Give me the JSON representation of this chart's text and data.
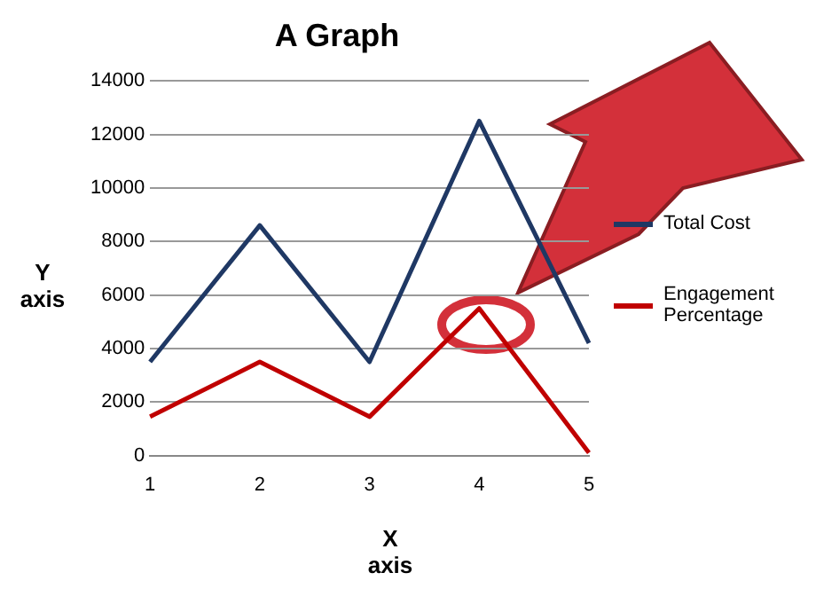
{
  "chart_data": {
    "type": "line",
    "title": "A Graph",
    "xlabel": "X axis",
    "ylabel": "Y axis",
    "categories": [
      "1",
      "2",
      "3",
      "4",
      "5"
    ],
    "series": [
      {
        "name": "Total Cost",
        "color": "#1f3864",
        "values": [
          3500,
          8600,
          3500,
          12500,
          4200
        ]
      },
      {
        "name": "Engagement Percentage",
        "color": "#c00000",
        "values": [
          1450,
          3500,
          1450,
          5500,
          100
        ]
      }
    ],
    "ylim": [
      0,
      14000
    ],
    "yticks": [
      0,
      2000,
      4000,
      6000,
      8000,
      10000,
      12000,
      14000
    ],
    "grid": "y",
    "legend": "right",
    "marker": "none",
    "line_style": "solid"
  }
}
